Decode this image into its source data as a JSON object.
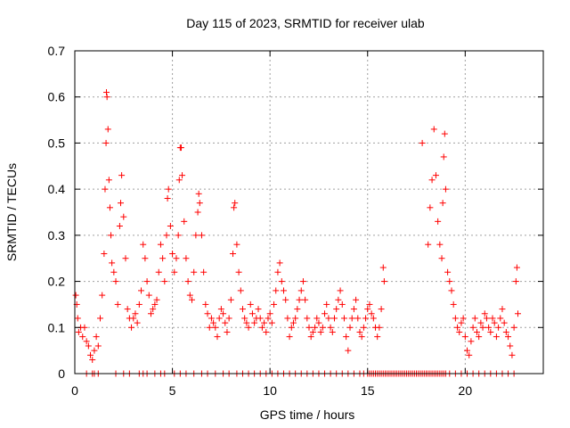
{
  "chart_data": {
    "type": "scatter",
    "title": "Day 115 of 2023, SRMTID for receiver ulab",
    "xlabel": "GPS time / hours",
    "ylabel": "SRMTID / TECUs",
    "xlim": [
      0,
      24
    ],
    "ylim": [
      0,
      0.7
    ],
    "xticks": [
      0,
      5,
      10,
      15,
      20
    ],
    "xtick_labels": [
      "0",
      "5",
      "10",
      "15",
      "20"
    ],
    "yticks": [
      0,
      0.1,
      0.2,
      0.3,
      0.4,
      0.5,
      0.6,
      0.7
    ],
    "ytick_labels": [
      "0",
      "0.1",
      "0.2",
      "0.3",
      "0.4",
      "0.5",
      "0.6",
      "0.7"
    ],
    "grid": true,
    "marker": "+",
    "color": "#ff0000",
    "series": [
      {
        "name": "SRMTID",
        "points": [
          [
            0.05,
            0.17
          ],
          [
            0.1,
            0.15
          ],
          [
            0.15,
            0.12
          ],
          [
            0.2,
            0.09
          ],
          [
            0.3,
            0.1
          ],
          [
            0.4,
            0.08
          ],
          [
            0.5,
            0.1
          ],
          [
            0.6,
            0.07
          ],
          [
            0.7,
            0.06
          ],
          [
            0.8,
            0.04
          ],
          [
            0.9,
            0.03
          ],
          [
            1.0,
            0.05
          ],
          [
            1.1,
            0.08
          ],
          [
            1.2,
            0.06
          ],
          [
            1.3,
            0.12
          ],
          [
            1.4,
            0.17
          ],
          [
            1.5,
            0.26
          ],
          [
            1.55,
            0.4
          ],
          [
            1.6,
            0.5
          ],
          [
            1.62,
            0.61
          ],
          [
            1.65,
            0.6
          ],
          [
            1.7,
            0.53
          ],
          [
            1.75,
            0.42
          ],
          [
            1.8,
            0.36
          ],
          [
            1.85,
            0.3
          ],
          [
            1.9,
            0.24
          ],
          [
            2.0,
            0.22
          ],
          [
            2.1,
            0.2
          ],
          [
            2.2,
            0.15
          ],
          [
            2.3,
            0.32
          ],
          [
            2.35,
            0.37
          ],
          [
            2.4,
            0.43
          ],
          [
            2.5,
            0.34
          ],
          [
            2.6,
            0.25
          ],
          [
            2.7,
            0.14
          ],
          [
            2.8,
            0.12
          ],
          [
            2.9,
            0.1
          ],
          [
            3.0,
            0.12
          ],
          [
            3.1,
            0.13
          ],
          [
            3.2,
            0.11
          ],
          [
            3.3,
            0.15
          ],
          [
            3.4,
            0.18
          ],
          [
            3.5,
            0.28
          ],
          [
            3.6,
            0.25
          ],
          [
            3.7,
            0.2
          ],
          [
            3.8,
            0.17
          ],
          [
            3.9,
            0.13
          ],
          [
            4.0,
            0.14
          ],
          [
            4.1,
            0.15
          ],
          [
            4.2,
            0.16
          ],
          [
            4.3,
            0.22
          ],
          [
            4.4,
            0.28
          ],
          [
            4.5,
            0.25
          ],
          [
            4.6,
            0.2
          ],
          [
            4.7,
            0.3
          ],
          [
            4.75,
            0.38
          ],
          [
            4.8,
            0.4
          ],
          [
            4.9,
            0.32
          ],
          [
            5.0,
            0.26
          ],
          [
            5.1,
            0.22
          ],
          [
            5.2,
            0.25
          ],
          [
            5.3,
            0.3
          ],
          [
            5.35,
            0.42
          ],
          [
            5.4,
            0.49
          ],
          [
            5.45,
            0.49
          ],
          [
            5.5,
            0.43
          ],
          [
            5.6,
            0.33
          ],
          [
            5.7,
            0.25
          ],
          [
            5.8,
            0.2
          ],
          [
            5.9,
            0.17
          ],
          [
            6.0,
            0.16
          ],
          [
            6.1,
            0.22
          ],
          [
            6.2,
            0.3
          ],
          [
            6.3,
            0.35
          ],
          [
            6.35,
            0.39
          ],
          [
            6.4,
            0.37
          ],
          [
            6.5,
            0.3
          ],
          [
            6.6,
            0.22
          ],
          [
            6.7,
            0.15
          ],
          [
            6.8,
            0.13
          ],
          [
            6.9,
            0.1
          ],
          [
            7.0,
            0.12
          ],
          [
            7.1,
            0.11
          ],
          [
            7.2,
            0.1
          ],
          [
            7.3,
            0.08
          ],
          [
            7.4,
            0.12
          ],
          [
            7.5,
            0.14
          ],
          [
            7.6,
            0.13
          ],
          [
            7.7,
            0.11
          ],
          [
            7.8,
            0.09
          ],
          [
            7.9,
            0.12
          ],
          [
            8.0,
            0.16
          ],
          [
            8.1,
            0.26
          ],
          [
            8.15,
            0.36
          ],
          [
            8.2,
            0.37
          ],
          [
            8.3,
            0.28
          ],
          [
            8.4,
            0.22
          ],
          [
            8.5,
            0.18
          ],
          [
            8.6,
            0.14
          ],
          [
            8.7,
            0.12
          ],
          [
            8.8,
            0.11
          ],
          [
            8.9,
            0.1
          ],
          [
            9.0,
            0.15
          ],
          [
            9.1,
            0.13
          ],
          [
            9.2,
            0.11
          ],
          [
            9.3,
            0.12
          ],
          [
            9.4,
            0.14
          ],
          [
            9.5,
            0.12
          ],
          [
            9.6,
            0.1
          ],
          [
            9.7,
            0.11
          ],
          [
            9.8,
            0.09
          ],
          [
            9.9,
            0.12
          ],
          [
            10.0,
            0.13
          ],
          [
            10.1,
            0.11
          ],
          [
            10.2,
            0.15
          ],
          [
            10.3,
            0.18
          ],
          [
            10.4,
            0.22
          ],
          [
            10.5,
            0.24
          ],
          [
            10.6,
            0.2
          ],
          [
            10.7,
            0.18
          ],
          [
            10.8,
            0.16
          ],
          [
            10.9,
            0.12
          ],
          [
            11.0,
            0.08
          ],
          [
            11.1,
            0.1
          ],
          [
            11.2,
            0.11
          ],
          [
            11.3,
            0.12
          ],
          [
            11.4,
            0.14
          ],
          [
            11.5,
            0.16
          ],
          [
            11.6,
            0.18
          ],
          [
            11.7,
            0.2
          ],
          [
            11.8,
            0.16
          ],
          [
            11.9,
            0.12
          ],
          [
            12.0,
            0.1
          ],
          [
            12.1,
            0.08
          ],
          [
            12.2,
            0.09
          ],
          [
            12.3,
            0.1
          ],
          [
            12.4,
            0.12
          ],
          [
            12.5,
            0.11
          ],
          [
            12.6,
            0.09
          ],
          [
            12.7,
            0.1
          ],
          [
            12.8,
            0.13
          ],
          [
            12.9,
            0.15
          ],
          [
            13.0,
            0.12
          ],
          [
            13.1,
            0.1
          ],
          [
            13.2,
            0.09
          ],
          [
            13.3,
            0.12
          ],
          [
            13.4,
            0.14
          ],
          [
            13.5,
            0.16
          ],
          [
            13.6,
            0.18
          ],
          [
            13.7,
            0.15
          ],
          [
            13.8,
            0.12
          ],
          [
            13.9,
            0.08
          ],
          [
            14.0,
            0.05
          ],
          [
            14.1,
            0.1
          ],
          [
            14.2,
            0.12
          ],
          [
            14.3,
            0.14
          ],
          [
            14.4,
            0.16
          ],
          [
            14.5,
            0.12
          ],
          [
            14.6,
            0.09
          ],
          [
            14.7,
            0.08
          ],
          [
            14.8,
            0.1
          ],
          [
            14.9,
            0.12
          ],
          [
            15.0,
            0.14
          ],
          [
            15.1,
            0.15
          ],
          [
            15.2,
            0.13
          ],
          [
            15.3,
            0.12
          ],
          [
            15.4,
            0.1
          ],
          [
            15.5,
            0.08
          ],
          [
            15.6,
            0.1
          ],
          [
            15.7,
            0.14
          ],
          [
            15.8,
            0.23
          ],
          [
            15.85,
            0.2
          ],
          [
            17.8,
            0.5
          ],
          [
            18.1,
            0.28
          ],
          [
            18.2,
            0.36
          ],
          [
            18.3,
            0.42
          ],
          [
            18.4,
            0.53
          ],
          [
            18.5,
            0.43
          ],
          [
            18.6,
            0.33
          ],
          [
            18.7,
            0.28
          ],
          [
            18.8,
            0.25
          ],
          [
            18.85,
            0.37
          ],
          [
            18.9,
            0.47
          ],
          [
            18.95,
            0.52
          ],
          [
            19.0,
            0.4
          ],
          [
            19.1,
            0.22
          ],
          [
            19.2,
            0.2
          ],
          [
            19.3,
            0.18
          ],
          [
            19.4,
            0.15
          ],
          [
            19.5,
            0.12
          ],
          [
            19.6,
            0.1
          ],
          [
            19.7,
            0.09
          ],
          [
            19.8,
            0.11
          ],
          [
            19.9,
            0.12
          ],
          [
            20.0,
            0.08
          ],
          [
            20.1,
            0.05
          ],
          [
            20.2,
            0.04
          ],
          [
            20.3,
            0.07
          ],
          [
            20.4,
            0.1
          ],
          [
            20.5,
            0.12
          ],
          [
            20.6,
            0.09
          ],
          [
            20.7,
            0.08
          ],
          [
            20.8,
            0.11
          ],
          [
            20.9,
            0.1
          ],
          [
            21.0,
            0.13
          ],
          [
            21.1,
            0.12
          ],
          [
            21.2,
            0.1
          ],
          [
            21.3,
            0.09
          ],
          [
            21.4,
            0.12
          ],
          [
            21.5,
            0.11
          ],
          [
            21.6,
            0.08
          ],
          [
            21.7,
            0.1
          ],
          [
            21.8,
            0.12
          ],
          [
            21.9,
            0.14
          ],
          [
            22.0,
            0.11
          ],
          [
            22.1,
            0.09
          ],
          [
            22.2,
            0.08
          ],
          [
            22.3,
            0.06
          ],
          [
            22.4,
            0.04
          ],
          [
            22.5,
            0.1
          ],
          [
            22.6,
            0.2
          ],
          [
            22.65,
            0.23
          ],
          [
            22.7,
            0.13
          ]
        ],
        "zeros_x": [
          0.6,
          0.9,
          1.0,
          1.2,
          2.1,
          2.5,
          2.8,
          3.3,
          3.5,
          3.7,
          4.1,
          4.4,
          4.6,
          5.1,
          5.4,
          5.7,
          6.1,
          6.5,
          6.8,
          7.2,
          7.6,
          7.9,
          8.3,
          8.6,
          8.9,
          9.2,
          9.5,
          9.8,
          10.1,
          10.4,
          10.7,
          11.0,
          11.3,
          11.6,
          11.9,
          12.2,
          12.5,
          12.8,
          13.1,
          13.4,
          13.7,
          14.0,
          14.3,
          14.6,
          14.8,
          15.0,
          15.1,
          15.2,
          15.3,
          15.4,
          15.5,
          15.6,
          15.7,
          15.8,
          15.9,
          16.0,
          16.1,
          16.2,
          16.3,
          16.4,
          16.5,
          16.6,
          16.7,
          16.8,
          16.9,
          17.0,
          17.1,
          17.2,
          17.3,
          17.4,
          17.5,
          17.6,
          17.7,
          17.8,
          17.9,
          18.0,
          18.1,
          18.2,
          18.3,
          18.4,
          18.5,
          18.6,
          18.7,
          18.8,
          18.9,
          19.0,
          19.2,
          19.5,
          19.8,
          20.1,
          20.4,
          20.7,
          21.0,
          21.3,
          21.6,
          21.9,
          22.2,
          22.5
        ]
      }
    ]
  }
}
